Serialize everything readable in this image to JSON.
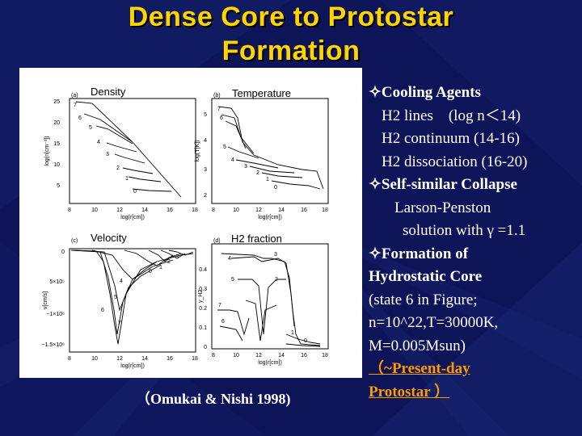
{
  "slide": {
    "title_line1": "Dense Core to Protostar",
    "title_line2": "Formation",
    "caption": "（Omukai & Nishi 1998)"
  },
  "colors": {
    "background": "#0d1457",
    "title": "#ffd400",
    "text": "#ffffff",
    "highlight": "#ff9900"
  },
  "bullets": {
    "cooling_heading": "Cooling Agents",
    "cooling_1": "H2 lines　(log n＜14)",
    "cooling_2": "H2 continuum (14-16)",
    "cooling_3": "H2 dissociation (16-20)",
    "selfsim_heading": "Self-similar Collapse",
    "selfsim_1": "Larson-Penston",
    "selfsim_2": "solution with γ =1.1",
    "hydro_heading_1": "Formation of",
    "hydro_heading_2": "Hydrostatic Core",
    "hydro_1": "(state 6 in Figure;",
    "hydro_2": "n=10^22,T=30000K,",
    "hydro_3": "M=0.005Msun)",
    "hydro_4": "（~Present-day",
    "hydro_5": "Protostar ）",
    "bullet_icon": "four-point-star-icon"
  },
  "panels": {
    "density": {
      "label": "(a)",
      "title": "Density",
      "ylabel": "log(n[cm⁻³])",
      "xlabel": "log(r[cm])",
      "yticks": [
        "25",
        "20",
        "15",
        "10",
        "5"
      ],
      "xticks": [
        "8",
        "10",
        "12",
        "14",
        "16",
        "18"
      ],
      "curve_labels": [
        "7",
        "6",
        "5",
        "4",
        "3",
        "2",
        "1",
        "0"
      ]
    },
    "temperature": {
      "label": "(b)",
      "title": "Temperature",
      "ylabel": "log(T[K])",
      "xlabel": "log(r[cm])",
      "yticks": [
        "5",
        "4",
        "3",
        "2"
      ],
      "xticks": [
        "8",
        "10",
        "12",
        "14",
        "16",
        "18"
      ],
      "curve_labels": [
        "7",
        "6",
        "5",
        "4",
        "3",
        "2",
        "1",
        "0"
      ]
    },
    "velocity": {
      "label": "(c)",
      "title": "Velocity",
      "ylabel": "v[cm/s]",
      "xlabel": "log(r[cm])",
      "yticks": [
        "0",
        "5×10⁵",
        "−1×10⁶",
        "−1.5×10⁶"
      ],
      "xticks": [
        "8",
        "10",
        "12",
        "14",
        "16",
        "18"
      ],
      "curve_labels": [
        "3",
        "2",
        "1",
        "0",
        "4",
        "5",
        "6",
        "7"
      ]
    },
    "h2": {
      "label": "(d)",
      "title": "H2 fraction",
      "ylabel": "y_H2",
      "xlabel": "log(r[cm])",
      "yticks": [
        "0.4",
        "0.3",
        "0.2",
        "0.1",
        "0"
      ],
      "xticks": [
        "8",
        "10",
        "12",
        "14",
        "16",
        "18"
      ],
      "curve_labels": [
        "3",
        "4",
        "5",
        "2",
        "7",
        "6",
        "1",
        "0"
      ]
    }
  }
}
